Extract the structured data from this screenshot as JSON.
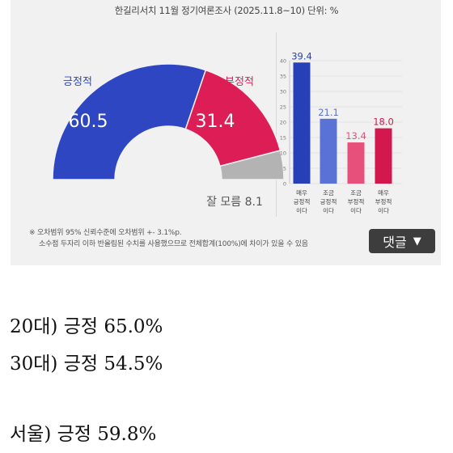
{
  "header": {
    "title": "한길리서치 11월 정기여론조사 (2025.11.8~10) 단위: %"
  },
  "chart_data": [
    {
      "type": "pie",
      "layout": "semicircle",
      "slices": [
        {
          "label": "긍정적",
          "value": 60.5,
          "color": "#2e46c2"
        },
        {
          "label": "부정적",
          "value": 31.4,
          "color": "#dd1d55"
        },
        {
          "label": "잘 모름",
          "value": 8.1,
          "color": "#b3b3b3"
        }
      ],
      "labels": {
        "positive_label": "긍정적",
        "positive_value": "60.5",
        "negative_label": "부정적",
        "negative_value": "31.4",
        "unknown_text": "잘 모름 8.1"
      }
    },
    {
      "type": "bar",
      "ylim": [
        0,
        40
      ],
      "yticks": [
        "0",
        "5",
        "10",
        "15",
        "20",
        "25",
        "30",
        "35",
        "40"
      ],
      "categories": [
        {
          "lines": [
            "매우",
            "긍정적",
            "이다"
          ]
        },
        {
          "lines": [
            "조금",
            "긍정적",
            "이다"
          ]
        },
        {
          "lines": [
            "조금",
            "부정적",
            "이다"
          ]
        },
        {
          "lines": [
            "매우",
            "부정적",
            "이다"
          ]
        }
      ],
      "values": [
        39.4,
        21.1,
        13.4,
        18.0
      ],
      "value_labels": [
        "39.4",
        "21.1",
        "13.4",
        "18.0"
      ],
      "colors": [
        "#2740b8",
        "#5a72d6",
        "#e8507c",
        "#d2184d"
      ]
    }
  ],
  "notes": {
    "line1": "※ 오차범위 95% 신뢰수준에 오차범위 +- 3.1%p.",
    "line2": "소수점 두자리 이하 반올림된 수치를 사용했으므로 전체합계(100%)에 차이가 있을 수 있음"
  },
  "reply_button": {
    "label": "댓글",
    "arrow": "▼"
  },
  "post_lines": [
    "20대) 긍정 65.0%",
    "30대) 긍정 54.5%",
    "서울) 긍정 59.8%"
  ]
}
